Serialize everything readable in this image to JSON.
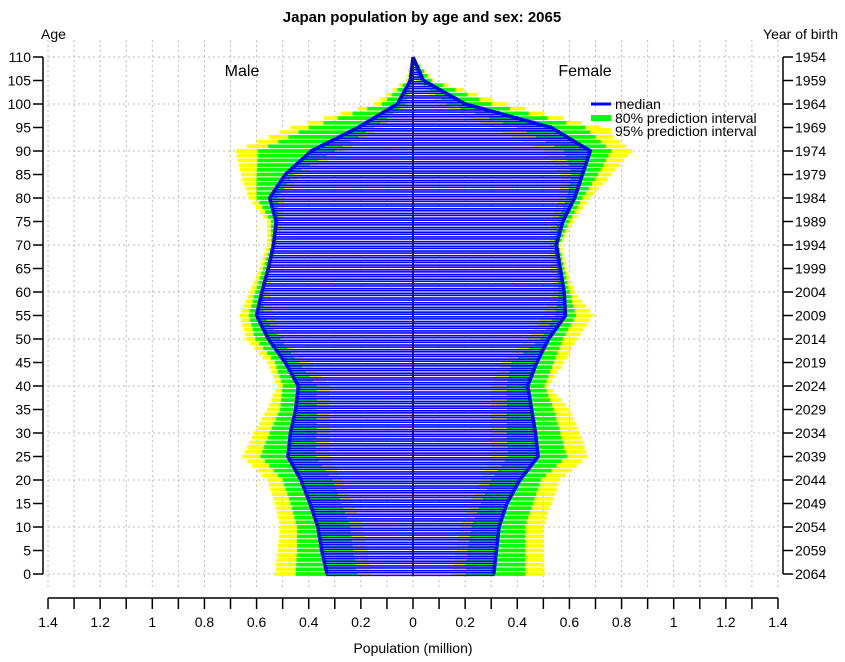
{
  "chart_data": {
    "type": "bar",
    "title": "Japan population by age and sex: 2065",
    "xlabel": "Population (million)",
    "ylabel_left": "Age",
    "ylabel_right": "Year of birth",
    "xlim": [
      -1.4,
      1.4
    ],
    "ylim": [
      0,
      110
    ],
    "grid": true,
    "x_ticks": [
      "1.4",
      "1.2",
      "1",
      "0.8",
      "0.6",
      "0.4",
      "0.2",
      "0",
      "0.2",
      "0.4",
      "0.6",
      "0.8",
      "1",
      "1.2",
      "1.4"
    ],
    "y_ticks_left": [
      "0",
      "5",
      "10",
      "15",
      "20",
      "25",
      "30",
      "35",
      "40",
      "45",
      "50",
      "55",
      "60",
      "65",
      "70",
      "75",
      "80",
      "85",
      "90",
      "95",
      "100",
      "105",
      "110"
    ],
    "y_ticks_right": [
      "2064",
      "2059",
      "2054",
      "2049",
      "2044",
      "2039",
      "2034",
      "2029",
      "2024",
      "2019",
      "2014",
      "2009",
      "2004",
      "1999",
      "1994",
      "1989",
      "1984",
      "1979",
      "1974",
      "1969",
      "1964",
      "1959",
      "1954"
    ],
    "panel_labels": {
      "male": "Male",
      "female": "Female"
    },
    "legend": {
      "position": "top-right",
      "entries": [
        {
          "label": "median",
          "color": "#0000ff"
        },
        {
          "label": "80% prediction interval",
          "color": "#00ff00"
        },
        {
          "label": "95% prediction interval",
          "color": "#ffff00"
        }
      ]
    },
    "ages": [
      0,
      5,
      10,
      15,
      20,
      25,
      30,
      35,
      40,
      45,
      50,
      55,
      60,
      65,
      70,
      75,
      80,
      85,
      90,
      95,
      100,
      105,
      110
    ],
    "male": {
      "lo95": [
        0.16,
        0.175,
        0.19,
        0.23,
        0.27,
        0.32,
        0.32,
        0.32,
        0.32,
        0.4,
        0.5,
        0.535,
        0.55,
        0.54,
        0.52,
        0.5,
        0.49,
        0.43,
        0.26,
        0.12,
        0.02,
        0,
        0
      ],
      "lo80": [
        0.215,
        0.23,
        0.24,
        0.275,
        0.31,
        0.375,
        0.37,
        0.37,
        0.37,
        0.44,
        0.51,
        0.575,
        0.57,
        0.55,
        0.53,
        0.515,
        0.52,
        0.46,
        0.3,
        0.15,
        0.03,
        0,
        0
      ],
      "median": [
        0.33,
        0.35,
        0.365,
        0.395,
        0.43,
        0.48,
        0.47,
        0.45,
        0.44,
        0.49,
        0.555,
        0.6,
        0.58,
        0.555,
        0.535,
        0.525,
        0.55,
        0.49,
        0.39,
        0.21,
        0.06,
        0.01,
        0
      ],
      "hi80": [
        0.45,
        0.445,
        0.445,
        0.47,
        0.5,
        0.585,
        0.55,
        0.51,
        0.5,
        0.53,
        0.605,
        0.63,
        0.605,
        0.575,
        0.545,
        0.545,
        0.6,
        0.6,
        0.595,
        0.4,
        0.12,
        0.02,
        0
      ],
      "hi95": [
        0.53,
        0.52,
        0.51,
        0.53,
        0.56,
        0.655,
        0.61,
        0.56,
        0.52,
        0.56,
        0.64,
        0.665,
        0.625,
        0.59,
        0.56,
        0.56,
        0.63,
        0.66,
        0.68,
        0.47,
        0.15,
        0.03,
        0
      ]
    },
    "female": {
      "lo95": [
        0.15,
        0.165,
        0.18,
        0.22,
        0.26,
        0.3,
        0.3,
        0.3,
        0.3,
        0.34,
        0.44,
        0.5,
        0.54,
        0.53,
        0.52,
        0.53,
        0.56,
        0.57,
        0.5,
        0.3,
        0.1,
        0.01,
        0
      ],
      "lo80": [
        0.2,
        0.21,
        0.225,
        0.26,
        0.3,
        0.365,
        0.36,
        0.36,
        0.36,
        0.38,
        0.49,
        0.545,
        0.56,
        0.55,
        0.54,
        0.555,
        0.59,
        0.61,
        0.58,
        0.4,
        0.13,
        0.02,
        0
      ],
      "median": [
        0.31,
        0.32,
        0.33,
        0.36,
        0.41,
        0.48,
        0.47,
        0.455,
        0.44,
        0.475,
        0.52,
        0.585,
        0.58,
        0.565,
        0.55,
        0.575,
        0.62,
        0.65,
        0.68,
        0.53,
        0.2,
        0.04,
        0
      ],
      "hi80": [
        0.43,
        0.43,
        0.43,
        0.46,
        0.49,
        0.59,
        0.565,
        0.54,
        0.505,
        0.54,
        0.575,
        0.625,
        0.6,
        0.58,
        0.56,
        0.6,
        0.65,
        0.71,
        0.76,
        0.66,
        0.3,
        0.07,
        0
      ],
      "hi95": [
        0.505,
        0.5,
        0.5,
        0.53,
        0.565,
        0.67,
        0.64,
        0.6,
        0.52,
        0.58,
        0.63,
        0.69,
        0.62,
        0.59,
        0.57,
        0.615,
        0.68,
        0.76,
        0.84,
        0.72,
        0.36,
        0.08,
        0
      ]
    },
    "colors": {
      "median": "#0000ff",
      "pi80": "#00ff00",
      "pi95": "#ffff00",
      "grid": "#bbbbbb"
    }
  }
}
